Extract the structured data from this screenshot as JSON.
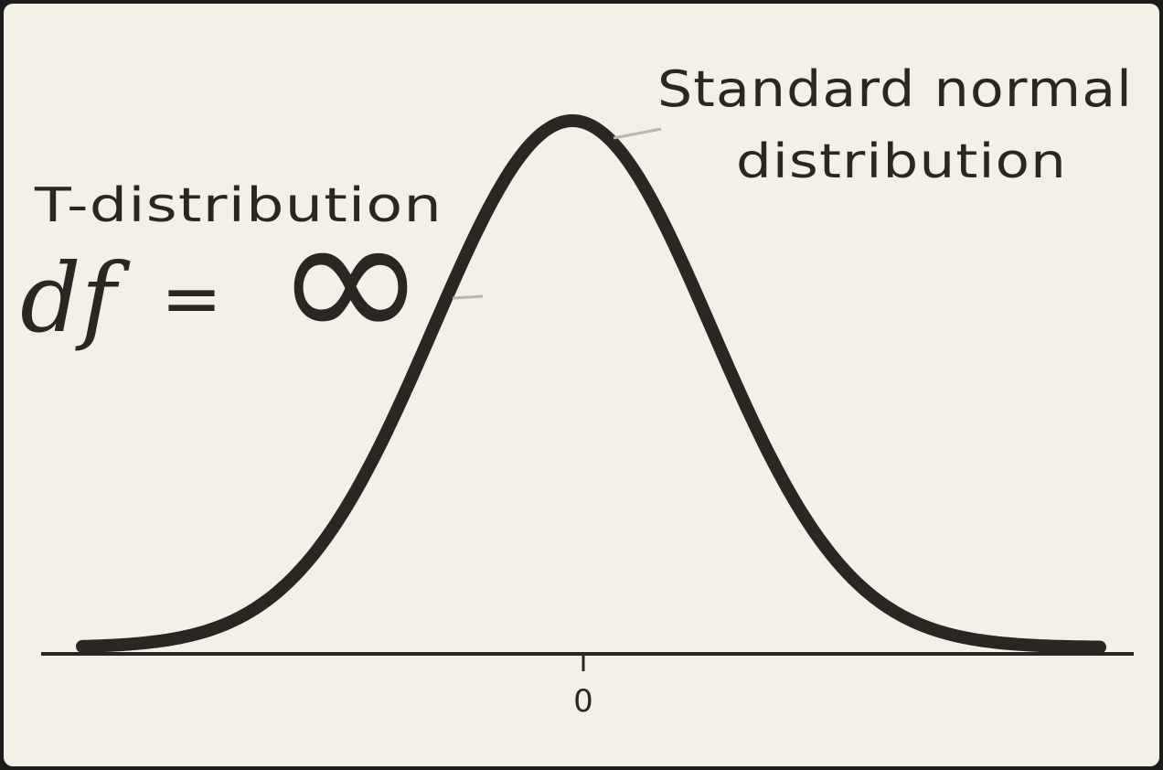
{
  "annotations": {
    "normal_label_line1": "Standard normal",
    "normal_label_line2": "distribution",
    "t_label": "T-distribution",
    "df_symbol": "df",
    "equals_symbol": "=",
    "df_value_symbol": "∞"
  },
  "axis": {
    "tick_label": "0"
  },
  "colors": {
    "background": "#f3f1e6",
    "ink": "#2a2722",
    "pointer": "#b8b6ad"
  }
}
